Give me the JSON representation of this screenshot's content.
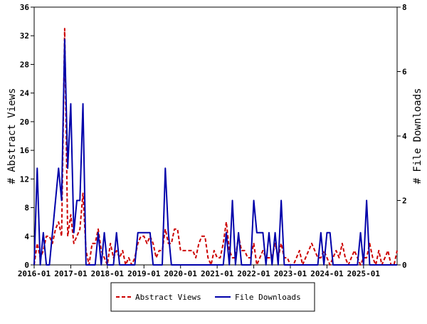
{
  "chart_data": {
    "type": "line",
    "y_left": {
      "label": "# Abstract Views",
      "lim": [
        0,
        36
      ],
      "ticks": [
        "0",
        "4",
        "8",
        "12",
        "16",
        "20",
        "24",
        "28",
        "32",
        "36"
      ]
    },
    "y_right": {
      "label": "# File Downloads",
      "lim": [
        0,
        8
      ],
      "ticks": [
        "0",
        "2",
        "4",
        "6",
        "8"
      ]
    },
    "x": {
      "lim": [
        "2016-01",
        "2025-12"
      ],
      "ticks": [
        {
          "date": "2016-01",
          "label": "2016-01"
        },
        {
          "date": "2017-01",
          "label": "2017-01"
        },
        {
          "date": "2018-01",
          "label": "2018-01"
        },
        {
          "date": "2019-01",
          "label": "2019-01"
        },
        {
          "date": "2020-01",
          "label": "2020-01"
        },
        {
          "date": "2021-01",
          "label": "2021-01"
        },
        {
          "date": "2022-01",
          "label": "2022-01"
        },
        {
          "date": "2023-01",
          "label": "2023-01"
        },
        {
          "date": "2024-01",
          "label": "2024-01"
        },
        {
          "date": "2025-01",
          "label": "2025-01"
        }
      ]
    },
    "grid": false,
    "legend_position": "bottom",
    "series": [
      {
        "name": "Abstract Views",
        "axis": "left",
        "color": "#cc0000",
        "style": "dashed",
        "points": [
          [
            "2016-01",
            0
          ],
          [
            "2016-02",
            3
          ],
          [
            "2016-03",
            1
          ],
          [
            "2016-04",
            2
          ],
          [
            "2016-05",
            4
          ],
          [
            "2016-06",
            4
          ],
          [
            "2016-07",
            3
          ],
          [
            "2016-08",
            5
          ],
          [
            "2016-09",
            6
          ],
          [
            "2016-10",
            4
          ],
          [
            "2016-11",
            33
          ],
          [
            "2016-12",
            4
          ],
          [
            "2017-01",
            7
          ],
          [
            "2017-02",
            3
          ],
          [
            "2017-03",
            4
          ],
          [
            "2017-04",
            5
          ],
          [
            "2017-05",
            10
          ],
          [
            "2017-06",
            2
          ],
          [
            "2017-07",
            0
          ],
          [
            "2017-08",
            3
          ],
          [
            "2017-09",
            3
          ],
          [
            "2017-10",
            5
          ],
          [
            "2017-11",
            2
          ],
          [
            "2017-12",
            1
          ],
          [
            "2018-01",
            0
          ],
          [
            "2018-02",
            3
          ],
          [
            "2018-03",
            1
          ],
          [
            "2018-04",
            2
          ],
          [
            "2018-05",
            1
          ],
          [
            "2018-06",
            2
          ],
          [
            "2018-07",
            0
          ],
          [
            "2018-08",
            1
          ],
          [
            "2018-09",
            0
          ],
          [
            "2018-10",
            1
          ],
          [
            "2018-11",
            3
          ],
          [
            "2018-12",
            4
          ],
          [
            "2019-01",
            4
          ],
          [
            "2019-02",
            3
          ],
          [
            "2019-03",
            4
          ],
          [
            "2019-04",
            3
          ],
          [
            "2019-05",
            1
          ],
          [
            "2019-06",
            2
          ],
          [
            "2019-07",
            2
          ],
          [
            "2019-08",
            5
          ],
          [
            "2019-09",
            3
          ],
          [
            "2019-10",
            3
          ],
          [
            "2019-11",
            5
          ],
          [
            "2019-12",
            5
          ],
          [
            "2020-01",
            2
          ],
          [
            "2020-02",
            2
          ],
          [
            "2020-03",
            2
          ],
          [
            "2020-04",
            2
          ],
          [
            "2020-05",
            2
          ],
          [
            "2020-06",
            1
          ],
          [
            "2020-07",
            3
          ],
          [
            "2020-08",
            4
          ],
          [
            "2020-09",
            4
          ],
          [
            "2020-10",
            1
          ],
          [
            "2020-11",
            0
          ],
          [
            "2020-12",
            2
          ],
          [
            "2021-01",
            1
          ],
          [
            "2021-02",
            1
          ],
          [
            "2021-03",
            3
          ],
          [
            "2021-04",
            6
          ],
          [
            "2021-05",
            2
          ],
          [
            "2021-06",
            1
          ],
          [
            "2021-07",
            1
          ],
          [
            "2021-08",
            4
          ],
          [
            "2021-09",
            2
          ],
          [
            "2021-10",
            2
          ],
          [
            "2021-11",
            1
          ],
          [
            "2021-12",
            1
          ],
          [
            "2022-01",
            3
          ],
          [
            "2022-02",
            0
          ],
          [
            "2022-03",
            1
          ],
          [
            "2022-04",
            2
          ],
          [
            "2022-05",
            1
          ],
          [
            "2022-06",
            1
          ],
          [
            "2022-07",
            1
          ],
          [
            "2022-08",
            3
          ],
          [
            "2022-09",
            1
          ],
          [
            "2022-10",
            3
          ],
          [
            "2022-11",
            1
          ],
          [
            "2022-12",
            1
          ],
          [
            "2023-01",
            0
          ],
          [
            "2023-02",
            0
          ],
          [
            "2023-03",
            1
          ],
          [
            "2023-04",
            2
          ],
          [
            "2023-05",
            0
          ],
          [
            "2023-06",
            1
          ],
          [
            "2023-07",
            2
          ],
          [
            "2023-08",
            3
          ],
          [
            "2023-09",
            2
          ],
          [
            "2023-10",
            1
          ],
          [
            "2023-11",
            1
          ],
          [
            "2023-12",
            2
          ],
          [
            "2024-01",
            1
          ],
          [
            "2024-02",
            0
          ],
          [
            "2024-03",
            1
          ],
          [
            "2024-04",
            2
          ],
          [
            "2024-05",
            1
          ],
          [
            "2024-06",
            3
          ],
          [
            "2024-07",
            1
          ],
          [
            "2024-08",
            0
          ],
          [
            "2024-09",
            1
          ],
          [
            "2024-10",
            2
          ],
          [
            "2024-11",
            1
          ],
          [
            "2024-12",
            0
          ],
          [
            "2025-01",
            1
          ],
          [
            "2025-02",
            1
          ],
          [
            "2025-03",
            3
          ],
          [
            "2025-04",
            1
          ],
          [
            "2025-05",
            0
          ],
          [
            "2025-06",
            2
          ],
          [
            "2025-07",
            0
          ],
          [
            "2025-08",
            1
          ],
          [
            "2025-09",
            2
          ],
          [
            "2025-10",
            0
          ],
          [
            "2025-11",
            0
          ],
          [
            "2025-12",
            2
          ]
        ]
      },
      {
        "name": "File Downloads",
        "axis": "right",
        "color": "#0000aa",
        "style": "solid",
        "points": [
          [
            "2016-01",
            0
          ],
          [
            "2016-02",
            3
          ],
          [
            "2016-03",
            0
          ],
          [
            "2016-04",
            1
          ],
          [
            "2016-05",
            0
          ],
          [
            "2016-06",
            0
          ],
          [
            "2016-07",
            1
          ],
          [
            "2016-08",
            2
          ],
          [
            "2016-09",
            3
          ],
          [
            "2016-10",
            2
          ],
          [
            "2016-11",
            7
          ],
          [
            "2016-12",
            3
          ],
          [
            "2017-01",
            5
          ],
          [
            "2017-02",
            1
          ],
          [
            "2017-03",
            2
          ],
          [
            "2017-04",
            2
          ],
          [
            "2017-05",
            5
          ],
          [
            "2017-06",
            0
          ],
          [
            "2017-07",
            0
          ],
          [
            "2017-08",
            0
          ],
          [
            "2017-09",
            0
          ],
          [
            "2017-10",
            1
          ],
          [
            "2017-11",
            0
          ],
          [
            "2017-12",
            1
          ],
          [
            "2018-01",
            0
          ],
          [
            "2018-02",
            0
          ],
          [
            "2018-03",
            0
          ],
          [
            "2018-04",
            1
          ],
          [
            "2018-05",
            0
          ],
          [
            "2018-06",
            0
          ],
          [
            "2018-07",
            0
          ],
          [
            "2018-08",
            0
          ],
          [
            "2018-09",
            0
          ],
          [
            "2018-10",
            0
          ],
          [
            "2018-11",
            1
          ],
          [
            "2018-12",
            1
          ],
          [
            "2019-01",
            1
          ],
          [
            "2019-02",
            1
          ],
          [
            "2019-03",
            1
          ],
          [
            "2019-04",
            0
          ],
          [
            "2019-05",
            0
          ],
          [
            "2019-06",
            0
          ],
          [
            "2019-07",
            0
          ],
          [
            "2019-08",
            3
          ],
          [
            "2019-09",
            1
          ],
          [
            "2019-10",
            0
          ],
          [
            "2019-11",
            0
          ],
          [
            "2019-12",
            0
          ],
          [
            "2020-01",
            0
          ],
          [
            "2020-02",
            0
          ],
          [
            "2020-03",
            0
          ],
          [
            "2020-04",
            0
          ],
          [
            "2020-05",
            0
          ],
          [
            "2020-06",
            0
          ],
          [
            "2020-07",
            0
          ],
          [
            "2020-08",
            0
          ],
          [
            "2020-09",
            0
          ],
          [
            "2020-10",
            0
          ],
          [
            "2020-11",
            0
          ],
          [
            "2020-12",
            0
          ],
          [
            "2021-01",
            0
          ],
          [
            "2021-02",
            0
          ],
          [
            "2021-03",
            0
          ],
          [
            "2021-04",
            1
          ],
          [
            "2021-05",
            0
          ],
          [
            "2021-06",
            2
          ],
          [
            "2021-07",
            0
          ],
          [
            "2021-08",
            1
          ],
          [
            "2021-09",
            0
          ],
          [
            "2021-10",
            0
          ],
          [
            "2021-11",
            0
          ],
          [
            "2021-12",
            0
          ],
          [
            "2022-01",
            2
          ],
          [
            "2022-02",
            1
          ],
          [
            "2022-03",
            1
          ],
          [
            "2022-04",
            1
          ],
          [
            "2022-05",
            0
          ],
          [
            "2022-06",
            1
          ],
          [
            "2022-07",
            0
          ],
          [
            "2022-08",
            1
          ],
          [
            "2022-09",
            0
          ],
          [
            "2022-10",
            2
          ],
          [
            "2022-11",
            0
          ],
          [
            "2022-12",
            0
          ],
          [
            "2023-01",
            0
          ],
          [
            "2023-02",
            0
          ],
          [
            "2023-03",
            0
          ],
          [
            "2023-04",
            0
          ],
          [
            "2023-05",
            0
          ],
          [
            "2023-06",
            0
          ],
          [
            "2023-07",
            0
          ],
          [
            "2023-08",
            0
          ],
          [
            "2023-09",
            0
          ],
          [
            "2023-10",
            0
          ],
          [
            "2023-11",
            1
          ],
          [
            "2023-12",
            0
          ],
          [
            "2024-01",
            1
          ],
          [
            "2024-02",
            1
          ],
          [
            "2024-03",
            0
          ],
          [
            "2024-04",
            0
          ],
          [
            "2024-05",
            0
          ],
          [
            "2024-06",
            0
          ],
          [
            "2024-07",
            0
          ],
          [
            "2024-08",
            0
          ],
          [
            "2024-09",
            0
          ],
          [
            "2024-10",
            0
          ],
          [
            "2024-11",
            0
          ],
          [
            "2024-12",
            1
          ],
          [
            "2025-01",
            0
          ],
          [
            "2025-02",
            2
          ],
          [
            "2025-03",
            0
          ],
          [
            "2025-04",
            0
          ],
          [
            "2025-05",
            0
          ],
          [
            "2025-06",
            0
          ],
          [
            "2025-07",
            0
          ],
          [
            "2025-08",
            0
          ],
          [
            "2025-09",
            0
          ],
          [
            "2025-10",
            0
          ],
          [
            "2025-11",
            0
          ],
          [
            "2025-12",
            0
          ]
        ]
      }
    ]
  }
}
